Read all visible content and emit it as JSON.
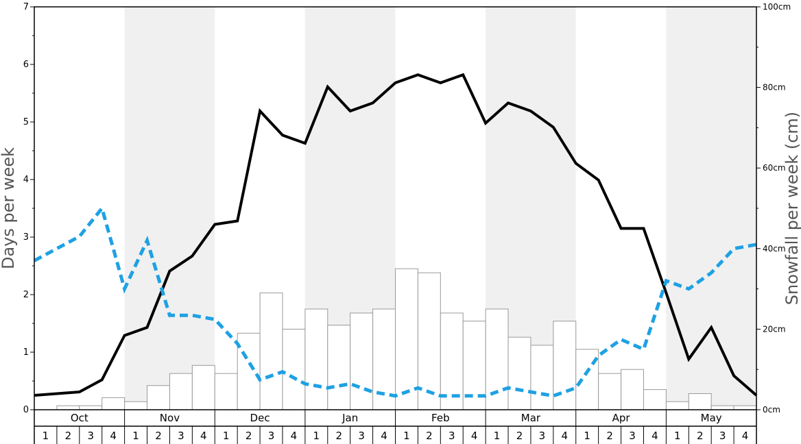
{
  "chart_data": {
    "type": "bar",
    "left_axis_label": "Days per week",
    "right_axis_label": "Snowfall per week (cm)",
    "left_ylim": [
      0,
      7
    ],
    "left_ticks": [
      "0",
      "1",
      "2",
      "3",
      "4",
      "5",
      "6",
      "7"
    ],
    "right_ylim": [
      0,
      100
    ],
    "right_ticks": [
      "0cm",
      "20cm",
      "40cm",
      "60cm",
      "80cm",
      "100cm"
    ],
    "months": [
      "Oct",
      "Nov",
      "Dec",
      "Jan",
      "Feb",
      "Mar",
      "Apr",
      "May"
    ],
    "weeks": [
      "1",
      "2",
      "3",
      "4"
    ],
    "series": [
      {
        "axis": "right",
        "style": "bar",
        "color": "#ffffff",
        "edge_color": "#999999",
        "values": [
          0,
          1,
          1,
          3,
          2,
          6,
          9,
          11,
          9,
          19,
          29,
          20,
          25,
          21,
          24,
          25,
          35,
          34,
          24,
          22,
          25,
          18,
          16,
          22,
          15,
          9,
          10,
          5,
          2,
          4,
          1,
          1
        ]
      },
      {
        "axis": "left",
        "style": "solid",
        "color": "#000000",
        "values": [
          0.25,
          0.28,
          0.31,
          0.52,
          1.29,
          1.43,
          2.41,
          2.67,
          3.22,
          3.28,
          5.19,
          4.77,
          4.63,
          5.61,
          5.19,
          5.33,
          5.68,
          5.82,
          5.68,
          5.82,
          4.98,
          5.33,
          5.19,
          4.91,
          4.28,
          3.99,
          3.15,
          3.15,
          2.03,
          0.88,
          1.43,
          0.59,
          0.25
        ]
      },
      {
        "axis": "left",
        "style": "dashed",
        "color": "#1ea1e3",
        "values": [
          2.59,
          2.8,
          3.01,
          3.5,
          2.1,
          2.94,
          1.64,
          1.64,
          1.57,
          1.15,
          0.52,
          0.66,
          0.45,
          0.38,
          0.45,
          0.31,
          0.24,
          0.38,
          0.24,
          0.24,
          0.24,
          0.38,
          0.31,
          0.24,
          0.38,
          0.94,
          1.22,
          1.05,
          2.24,
          2.1,
          2.38,
          2.8,
          2.87
        ]
      }
    ],
    "shaded_months": [
      "Nov",
      "Jan",
      "Mar",
      "May"
    ],
    "grid": false
  }
}
